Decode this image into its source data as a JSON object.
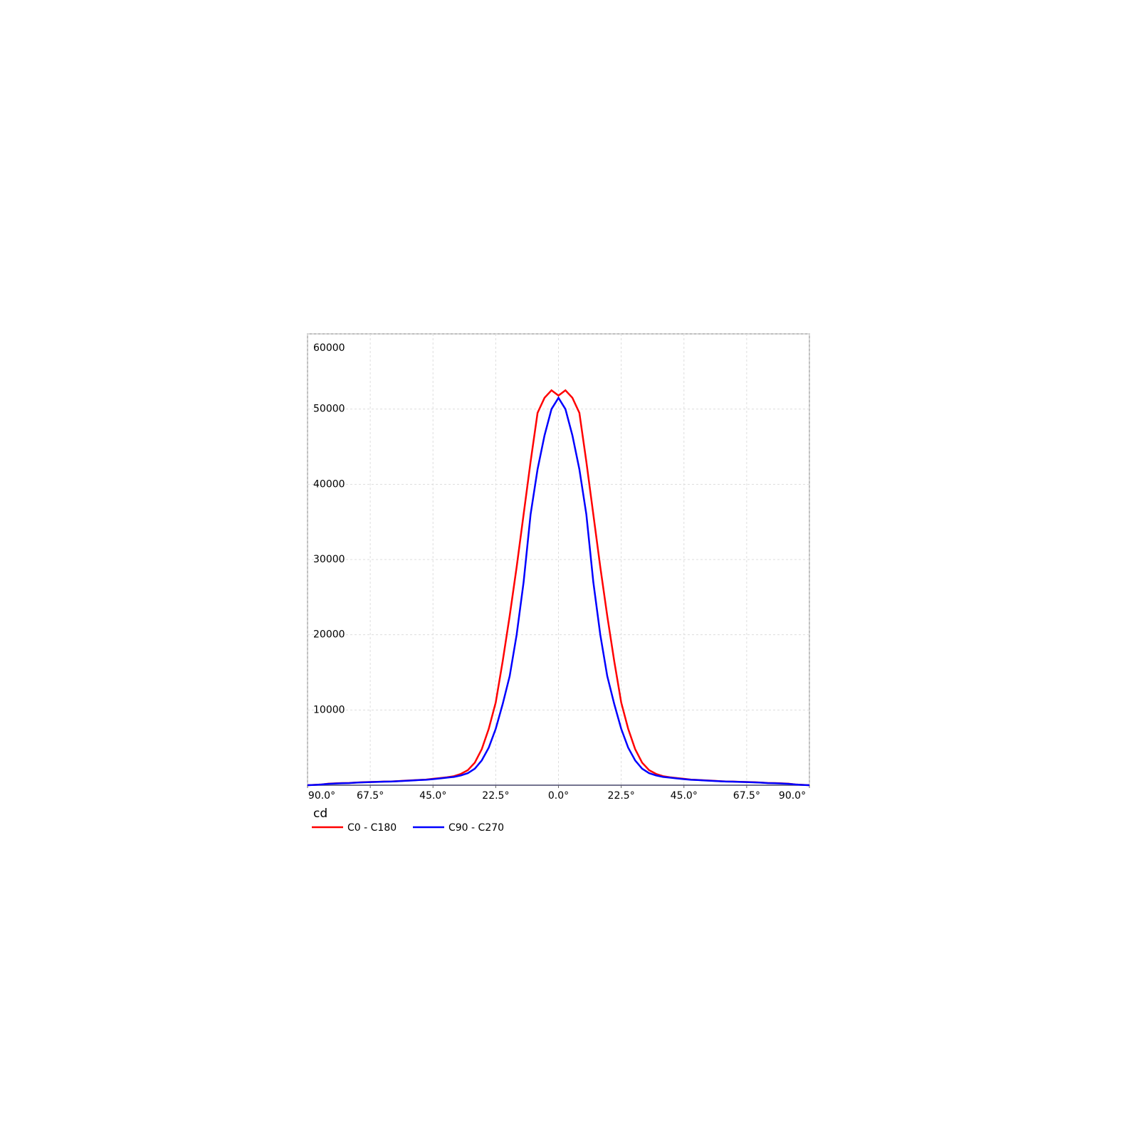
{
  "chart_data": {
    "type": "line",
    "y_label": "cd",
    "x": [
      -90,
      -87.5,
      -85,
      -82.5,
      -80,
      -77.5,
      -75,
      -72.5,
      -70,
      -67.5,
      -65,
      -62.5,
      -60,
      -57.5,
      -55,
      -52.5,
      -50,
      -47.5,
      -45,
      -42.5,
      -40,
      -37.5,
      -35,
      -32.5,
      -30,
      -27.5,
      -25,
      -22.5,
      -20,
      -17.5,
      -15,
      -12.5,
      -10,
      -7.5,
      -5,
      -2.5,
      0,
      2.5,
      5,
      7.5,
      10,
      12.5,
      15,
      17.5,
      20,
      22.5,
      25,
      27.5,
      30,
      32.5,
      35,
      37.5,
      40,
      42.5,
      45,
      47.5,
      50,
      52.5,
      55,
      57.5,
      60,
      62.5,
      65,
      67.5,
      70,
      72.5,
      75,
      77.5,
      80,
      82.5,
      85,
      87.5,
      90
    ],
    "series": [
      {
        "name": "C0 - C180",
        "color": "#ff0000",
        "values": [
          0,
          50,
          100,
          200,
          250,
          280,
          300,
          350,
          400,
          420,
          450,
          480,
          500,
          550,
          600,
          650,
          700,
          750,
          850,
          950,
          1050,
          1200,
          1500,
          2000,
          3000,
          4800,
          7500,
          11000,
          16500,
          22500,
          29000,
          36000,
          43000,
          49500,
          51500,
          52500,
          51800,
          52500,
          51500,
          49500,
          43000,
          36000,
          29000,
          22500,
          16500,
          11000,
          7500,
          4800,
          3000,
          2000,
          1500,
          1200,
          1050,
          950,
          850,
          750,
          700,
          650,
          600,
          550,
          500,
          480,
          450,
          420,
          400,
          350,
          300,
          280,
          250,
          200,
          100,
          50,
          0
        ]
      },
      {
        "name": "C90 - C270",
        "color": "#0000ff",
        "values": [
          0,
          40,
          90,
          180,
          230,
          260,
          290,
          340,
          380,
          410,
          440,
          470,
          490,
          530,
          580,
          630,
          680,
          720,
          800,
          900,
          1000,
          1100,
          1300,
          1600,
          2200,
          3300,
          5000,
          7500,
          10800,
          14500,
          20000,
          27000,
          36000,
          42000,
          46500,
          50000,
          51500,
          50000,
          46500,
          42000,
          36000,
          27000,
          20000,
          14500,
          10800,
          7500,
          5000,
          3300,
          2200,
          1600,
          1300,
          1100,
          1000,
          900,
          800,
          720,
          680,
          630,
          580,
          530,
          490,
          470,
          440,
          410,
          380,
          340,
          290,
          260,
          230,
          180,
          90,
          40,
          0
        ]
      }
    ],
    "xlim": [
      -90,
      90
    ],
    "xticks": [
      {
        "value": -90,
        "label": "90.0°"
      },
      {
        "value": -67.5,
        "label": "67.5°"
      },
      {
        "value": -45,
        "label": "45.0°"
      },
      {
        "value": -22.5,
        "label": "22.5°"
      },
      {
        "value": 0,
        "label": "0.0°"
      },
      {
        "value": 22.5,
        "label": "22.5°"
      },
      {
        "value": 45,
        "label": "45.0°"
      },
      {
        "value": 67.5,
        "label": "67.5°"
      },
      {
        "value": 90,
        "label": "90.0°"
      }
    ],
    "ylim": [
      0,
      60000
    ],
    "yticks": [
      10000,
      20000,
      30000,
      40000,
      50000,
      60000
    ],
    "grid": true
  }
}
